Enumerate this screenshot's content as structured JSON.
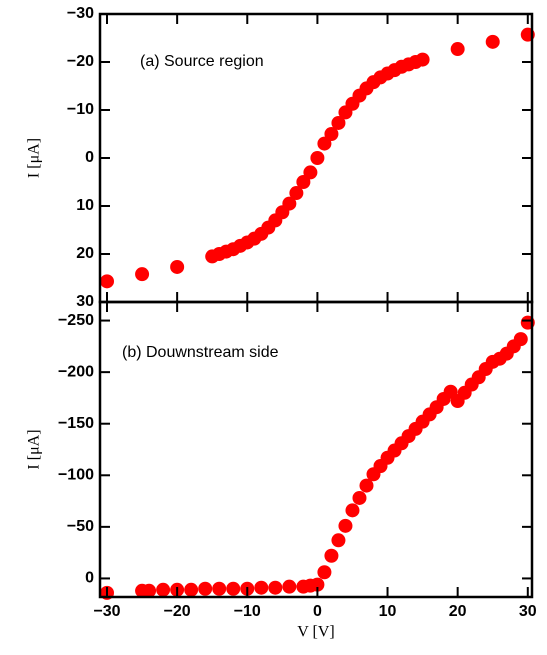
{
  "chart_data": [
    {
      "type": "scatter",
      "annotation": "(a) Source region",
      "ylabel": "I [μA]",
      "x": [
        -30,
        -25,
        -20,
        -15,
        -14,
        -13,
        -12,
        -11,
        -10,
        -9,
        -8,
        -7,
        -6,
        -5,
        -4,
        -3,
        -2,
        -1,
        0,
        1,
        2,
        3,
        4,
        5,
        6,
        7,
        8,
        9,
        10,
        11,
        12,
        13,
        14,
        15,
        20,
        25,
        30
      ],
      "series": [
        {
          "name": "I",
          "color": "#ff0000",
          "values": [
            25.7,
            24.2,
            22.7,
            20.5,
            20,
            19.5,
            19,
            18.3,
            17.6,
            16.8,
            15.8,
            14.5,
            13,
            11.3,
            9.5,
            7.3,
            5,
            3,
            0,
            -3,
            -5,
            -7.3,
            -9.5,
            -11.3,
            -13,
            -14.5,
            -15.8,
            -16.8,
            -17.6,
            -18.3,
            -19,
            -19.5,
            -20,
            -20.5,
            -22.7,
            -24.2,
            -25.7
          ]
        }
      ],
      "xlim": [
        -31,
        30.6
      ],
      "xticks": [
        -30,
        -20,
        -10,
        0,
        10,
        20,
        30
      ],
      "ylim": [
        30,
        -30
      ],
      "yticks": [
        {
          "value": -30,
          "label": "−30"
        },
        {
          "value": -20,
          "label": "−20"
        },
        {
          "value": -10,
          "label": "−10"
        },
        0,
        10,
        20,
        30
      ]
    },
    {
      "type": "scatter",
      "annotation": "(b) Douwnstream side",
      "ylabel": "I [μA]",
      "xlabel": "V [V]",
      "x": [
        -30,
        -25,
        -24,
        -22,
        -20,
        -18,
        -16,
        -14,
        -12,
        -10,
        -8,
        -6,
        -4,
        -2,
        -1,
        0,
        1,
        2,
        3,
        4,
        5,
        6,
        7,
        8,
        9,
        10,
        11,
        12,
        13,
        14,
        15,
        16,
        17,
        18,
        19,
        20,
        21,
        22,
        23,
        24,
        25,
        26,
        27,
        28,
        29,
        30
      ],
      "series": [
        {
          "name": "I",
          "color": "#ff0000",
          "values": [
            14,
            12,
            12,
            11,
            11,
            11,
            10,
            10,
            10,
            10,
            9,
            9,
            8,
            8,
            7,
            6,
            -6,
            -22,
            -37,
            -51,
            -66,
            -78,
            -90,
            -101,
            -109,
            -117,
            -124,
            -131,
            -138,
            -145,
            -152,
            -159,
            -166,
            -174,
            -181,
            -172,
            -180,
            -188,
            -195,
            -203,
            -210,
            -213,
            -218,
            -225,
            -232,
            -248
          ]
        }
      ],
      "xlim": [
        -31,
        30.6
      ],
      "xticks": [
        {
          "value": -30,
          "label": "−30"
        },
        {
          "value": -20,
          "label": "−20"
        },
        {
          "value": -10,
          "label": "−10"
        },
        0,
        10,
        20,
        30
      ],
      "ylim": [
        18,
        -268
      ],
      "yticks": [
        {
          "value": -250,
          "label": "−250"
        },
        {
          "value": -200,
          "label": "−200"
        },
        {
          "value": -150,
          "label": "−150"
        },
        {
          "value": -100,
          "label": "−100"
        },
        {
          "value": -50,
          "label": "−50"
        },
        0
      ]
    }
  ]
}
